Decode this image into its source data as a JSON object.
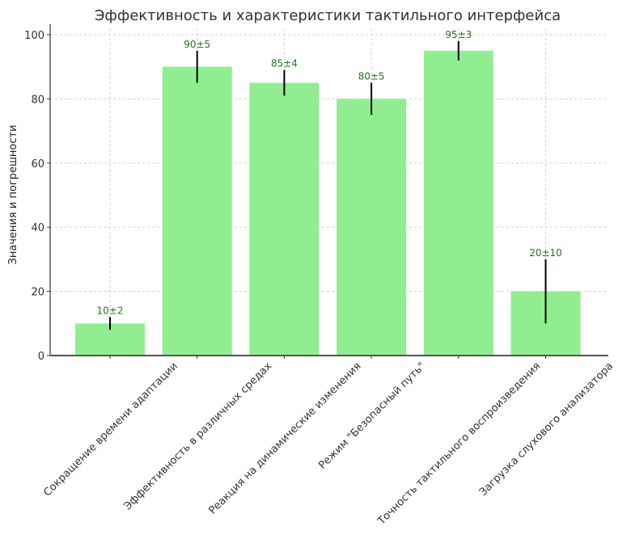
{
  "chart_data": {
    "type": "bar",
    "title": "Эффективность и характеристики тактильного интерфейса",
    "xlabel": "",
    "ylabel": "Значения и погрешности",
    "ylim": [
      0,
      102
    ],
    "yticks": [
      0,
      20,
      40,
      60,
      80,
      100
    ],
    "grid": true,
    "categories": [
      "Сокращение времени адаптации",
      "Эффективность в различных средах",
      "Реакция на динамические изменения",
      "Режим \"Безопасный путь\"",
      "Точность тактильного воспроизведения",
      "Загрузка слухового анализатора"
    ],
    "values": [
      10,
      90,
      85,
      80,
      95,
      20
    ],
    "errors": [
      2,
      5,
      4,
      5,
      3,
      10
    ],
    "data_labels": [
      "10±2",
      "90±5",
      "85±4",
      "80±5",
      "95±3",
      "20±10"
    ],
    "colors": {
      "bar": "#90ee90",
      "error": "#000000",
      "label": "#1a7a1a",
      "axis": "#333333"
    }
  }
}
